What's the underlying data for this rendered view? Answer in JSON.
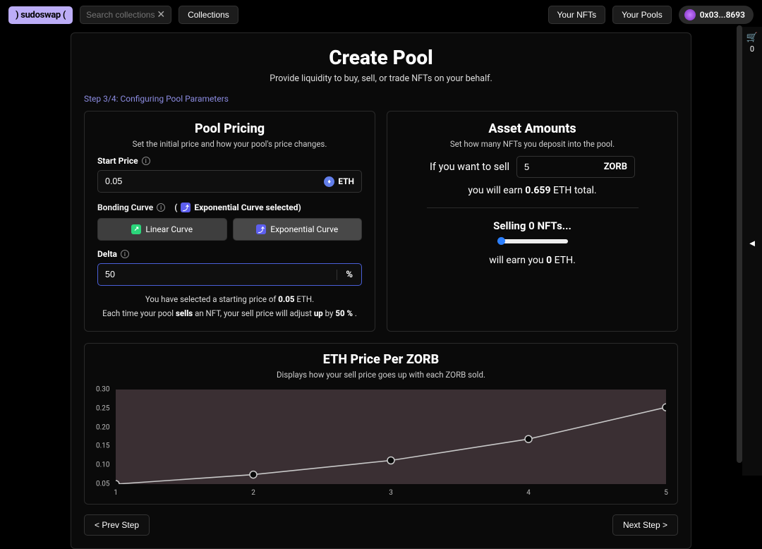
{
  "topbar": {
    "logo": ") sudoswap (",
    "search_placeholder": "Search collections",
    "collections_btn": "Collections",
    "your_nfts": "Your NFTs",
    "your_pools": "Your Pools",
    "wallet": "0x03...8693"
  },
  "sidecart": {
    "count": "0",
    "arrow": "◄"
  },
  "page": {
    "title": "Create Pool",
    "subtitle": "Provide liquidity to buy, sell, or trade NFTs on your behalf.",
    "step": "Step 3/4: Configuring Pool Parameters",
    "prev_btn": "< Prev Step",
    "next_btn": "Next Step >"
  },
  "pricing": {
    "heading": "Pool Pricing",
    "desc": "Set the initial price and how your pool's price changes.",
    "start_price_label": "Start Price",
    "start_price_value": "0.05",
    "eth_symbol": "ETH",
    "bonding_label": "Bonding Curve",
    "bonding_selected_open": "(",
    "bonding_selected_close": " Exponential Curve selected)",
    "linear_label": "Linear Curve",
    "exp_label": "Exponential Curve",
    "delta_label": "Delta",
    "delta_value": "50",
    "delta_unit": "%",
    "blurb1_a": "You have selected a starting price of ",
    "blurb1_b": "0.05",
    "blurb1_c": " ETH.",
    "blurb2_a": "Each time your pool ",
    "blurb2_b": "sells",
    "blurb2_c": " an NFT, your sell price will adjust ",
    "blurb2_d": "up",
    "blurb2_e": " by ",
    "blurb2_f": "50 %",
    "blurb2_g": " ."
  },
  "assets": {
    "heading": "Asset Amounts",
    "desc": "Set how many NFTs you deposit into the pool.",
    "want_sell": "If you want to sell",
    "sell_value": "5",
    "token_symbol": "ZORB",
    "earn_a": "you will earn ",
    "earn_b": "0.659",
    "earn_c": " ETH total.",
    "selling_a": "Selling ",
    "selling_b": "0",
    "selling_c": " NFTs...",
    "will_a": "will earn you ",
    "will_b": "0",
    "will_c": " ETH."
  },
  "chart": {
    "heading": "ETH Price Per ZORB",
    "desc": "Displays how your sell price goes up with each ZORB sold.",
    "type": "line",
    "background_color": "#3a2f33",
    "line_color": "#c8c8c8",
    "marker_stroke": "#cccccc",
    "marker_fill": "#0a0a0a",
    "marker_radius": 5,
    "line_width": 1.6,
    "xlim": [
      1,
      5
    ],
    "ylim": [
      0.05,
      0.3
    ],
    "yticks": [
      0.05,
      0.1,
      0.15,
      0.2,
      0.25,
      0.3
    ],
    "xticks": [
      1,
      2,
      3,
      4,
      5
    ],
    "x": [
      1,
      2,
      3,
      4,
      5
    ],
    "y": [
      0.05,
      0.075,
      0.1125,
      0.169,
      0.253
    ]
  }
}
